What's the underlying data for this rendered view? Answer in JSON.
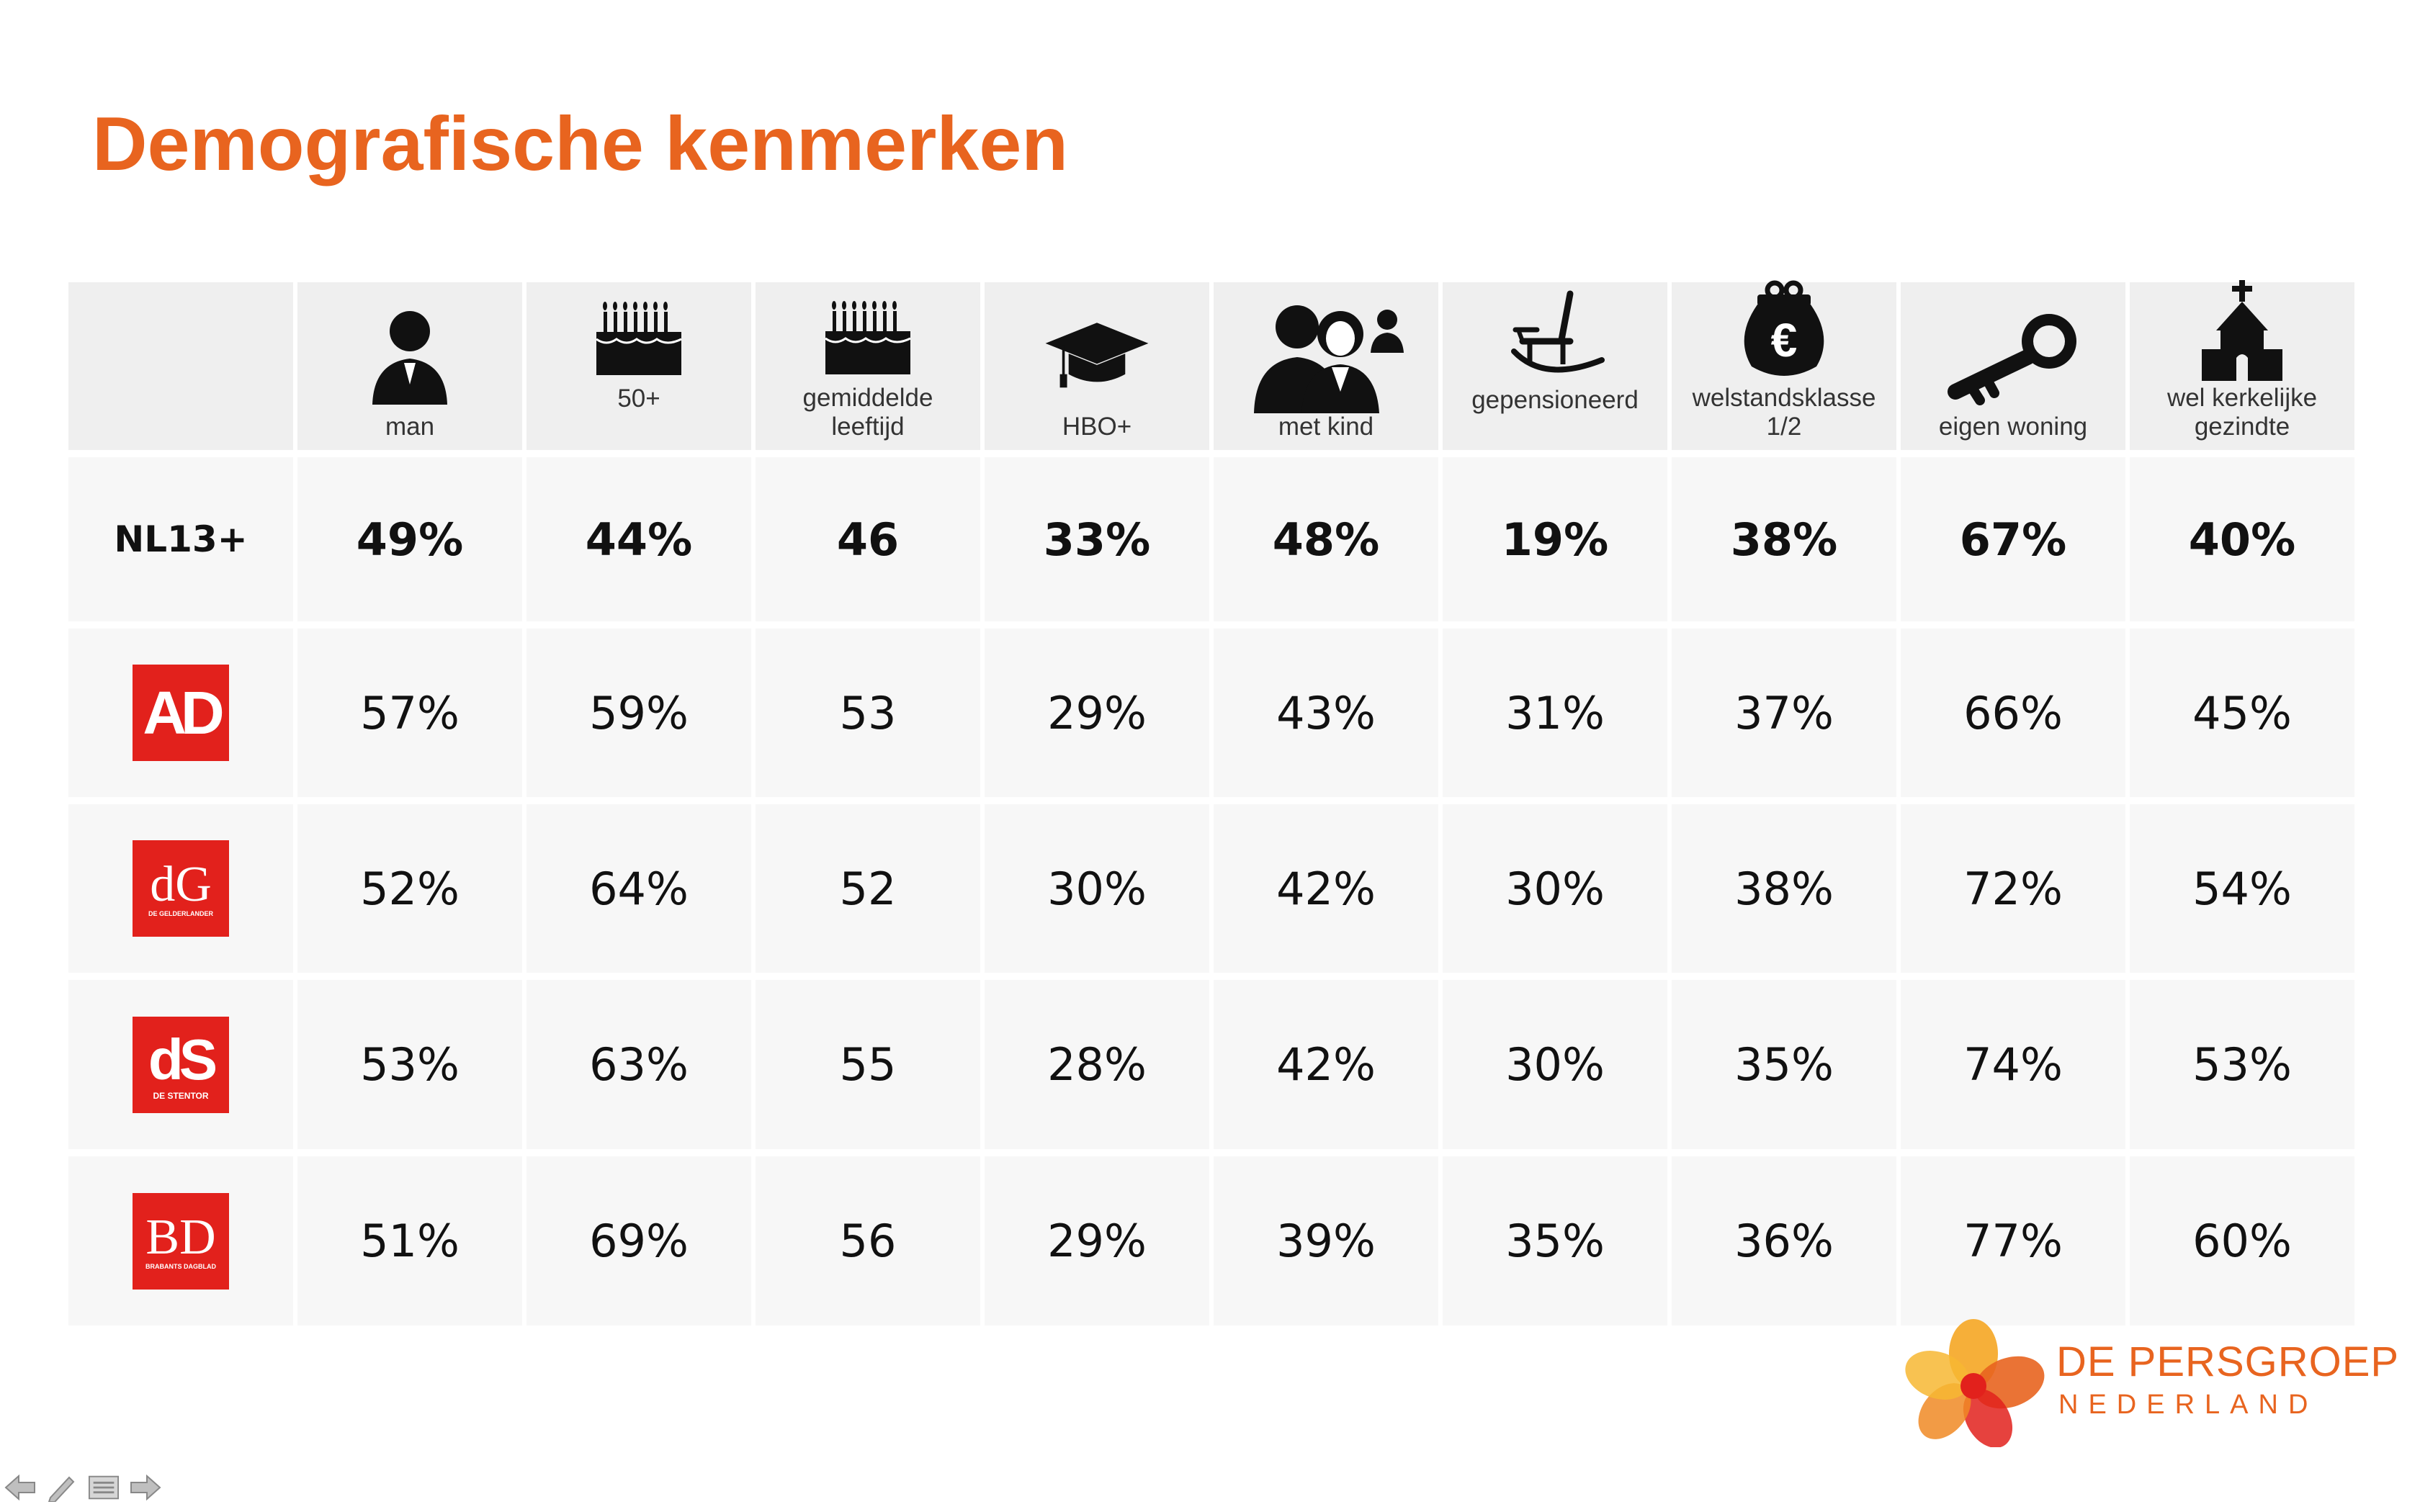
{
  "title": "Demografische kenmerken",
  "columns": [
    {
      "label": "man",
      "icon": "man-icon"
    },
    {
      "label": "50+",
      "icon": "birthday-cake-icon"
    },
    {
      "label": "gemiddelde\nleeftijd",
      "icon": "birthday-cake-icon"
    },
    {
      "label": "HBO+",
      "icon": "graduation-cap-icon"
    },
    {
      "label": "met kind",
      "icon": "family-icon"
    },
    {
      "label": "gepensioneerd",
      "icon": "rocking-chair-icon"
    },
    {
      "label": "welstandsklasse\n1/2",
      "icon": "euro-purse-icon"
    },
    {
      "label": "eigen woning",
      "icon": "key-icon"
    },
    {
      "label": "wel kerkelijke\ngezindte",
      "icon": "church-icon"
    }
  ],
  "rows": [
    {
      "label": "NL13+",
      "values": [
        "49%",
        "44%",
        "46",
        "33%",
        "48%",
        "19%",
        "38%",
        "67%",
        "40%"
      ]
    },
    {
      "logo": "AD",
      "values": [
        "57%",
        "59%",
        "53",
        "29%",
        "43%",
        "31%",
        "37%",
        "66%",
        "45%"
      ]
    },
    {
      "logo": "dG",
      "logo_sub": "DE GELDERLANDER",
      "values": [
        "52%",
        "64%",
        "52",
        "30%",
        "42%",
        "30%",
        "38%",
        "72%",
        "54%"
      ]
    },
    {
      "logo": "dS",
      "logo_sub": "DE STENTOR",
      "values": [
        "53%",
        "63%",
        "55",
        "28%",
        "42%",
        "30%",
        "35%",
        "74%",
        "53%"
      ]
    },
    {
      "logo": "BD",
      "logo_sub": "BRABANTS DAGBLAD",
      "values": [
        "51%",
        "69%",
        "56",
        "29%",
        "39%",
        "35%",
        "36%",
        "77%",
        "60%"
      ]
    }
  ],
  "brand": {
    "name": "DE PERSGROEP",
    "sub": "NEDERLAND"
  },
  "colors": {
    "accent": "#E8641F",
    "logo_red": "#E2211C"
  }
}
